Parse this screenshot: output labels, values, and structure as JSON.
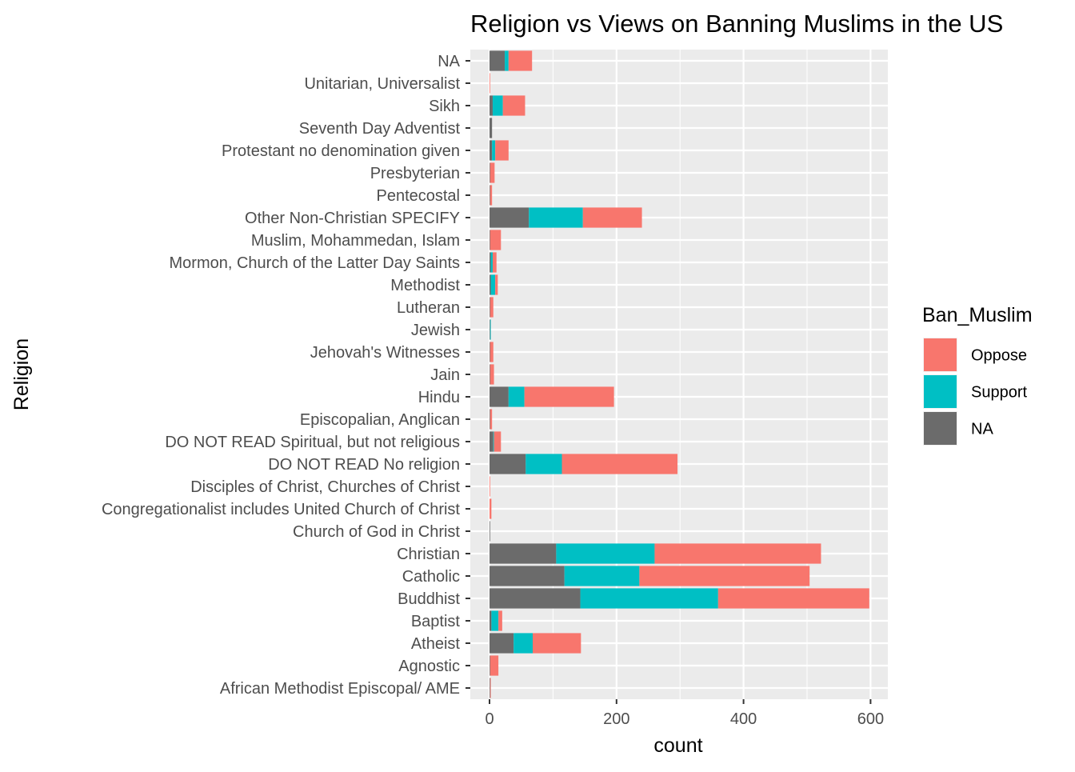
{
  "chart_data": {
    "type": "bar",
    "orientation": "horizontal",
    "stacked": true,
    "title": "Religion vs Views on Banning Muslims in the US",
    "xlabel": "count",
    "ylabel": "Religion",
    "xlim": [
      0,
      625
    ],
    "xticks": [
      0,
      200,
      400,
      600
    ],
    "xtick_labels": [
      "0",
      "200",
      "400",
      "600"
    ],
    "grid": true,
    "legend_position": "right",
    "legend_title": "Ban_Muslim",
    "stack_order": [
      "NA",
      "Support",
      "Oppose"
    ],
    "legend_order": [
      "Oppose",
      "Support",
      "NA"
    ],
    "colors": {
      "Oppose": "#F8766D",
      "Support": "#00BFC4",
      "NA": "#6b6b6b"
    },
    "panel_background": "#EBEBEB",
    "categories": [
      "NA",
      "Unitarian, Universalist",
      "Sikh",
      "Seventh Day Adventist",
      "Protestant no denomination given",
      "Presbyterian",
      "Pentecostal",
      "Other Non-Christian  SPECIFY",
      "Muslim, Mohammedan, Islam",
      "Mormon, Church of the Latter Day Saints",
      "Methodist",
      "Lutheran",
      "Jewish",
      "Jehovah's Witnesses",
      "Jain",
      "Hindu",
      "Episcopalian, Anglican",
      "DO NOT READ  Spiritual, but not religious",
      "DO NOT READ  No religion",
      "Disciples of Christ, Churches of Christ",
      "Congregationalist includes United Church of Christ",
      "Church of God in Christ",
      "Christian",
      "Catholic",
      "Buddhist",
      "Baptist",
      "Atheist",
      "Agnostic",
      "African Methodist Episcopal/ AME"
    ],
    "series": [
      {
        "name": "NA",
        "values": [
          24,
          0,
          5,
          4,
          4,
          1,
          1,
          62,
          1,
          2,
          2,
          1,
          1,
          1,
          1,
          30,
          1,
          6,
          57,
          0,
          0,
          1,
          105,
          118,
          143,
          3,
          38,
          1,
          1
        ]
      },
      {
        "name": "Support",
        "values": [
          6,
          0,
          16,
          0,
          5,
          0,
          0,
          85,
          0,
          3,
          7,
          0,
          1,
          0,
          0,
          25,
          0,
          1,
          57,
          0,
          0,
          0,
          155,
          118,
          217,
          11,
          30,
          0,
          0
        ]
      },
      {
        "name": "Oppose",
        "values": [
          37,
          1,
          35,
          0,
          21,
          7,
          3,
          93,
          17,
          6,
          4,
          5,
          0,
          5,
          6,
          141,
          3,
          11,
          182,
          1,
          3,
          0,
          262,
          268,
          238,
          6,
          76,
          13,
          1
        ]
      }
    ]
  }
}
